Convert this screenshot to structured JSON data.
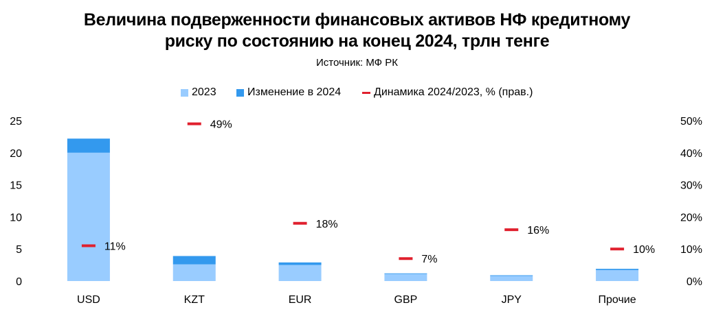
{
  "chart_data": {
    "type": "bar",
    "title_line1": "Величина подверженности финансовых активов НФ кредитному",
    "title_line2": "риску по состоянию на конец 2024, трлн тенге",
    "source": "Источник: МФ РК",
    "categories": [
      "USD",
      "KZT",
      "EUR",
      "GBP",
      "JPY",
      "Прочие"
    ],
    "series": [
      {
        "name": "2023",
        "values": [
          20.0,
          2.6,
          2.5,
          1.1,
          0.8,
          1.7
        ],
        "color": "#99CCFF"
      },
      {
        "name": "Изменение в 2024",
        "values": [
          2.2,
          1.3,
          0.4,
          0.1,
          0.1,
          0.2
        ],
        "color": "#3399EE"
      },
      {
        "name": "Динамика 2024/2023, % (прав.)",
        "values": [
          11,
          49,
          18,
          7,
          16,
          10
        ],
        "axis": "right",
        "color": "#E0202E"
      }
    ],
    "point_labels": [
      "11%",
      "49%",
      "18%",
      "7%",
      "16%",
      "10%"
    ],
    "left_axis": {
      "ylim": [
        0,
        25
      ],
      "ticks": [
        "0",
        "5",
        "10",
        "15",
        "20",
        "25"
      ]
    },
    "right_axis": {
      "ylim": [
        0,
        50
      ],
      "ticks": [
        "0%",
        "10%",
        "20%",
        "30%",
        "40%",
        "50%"
      ]
    },
    "grid": false,
    "legend_position": "top"
  }
}
